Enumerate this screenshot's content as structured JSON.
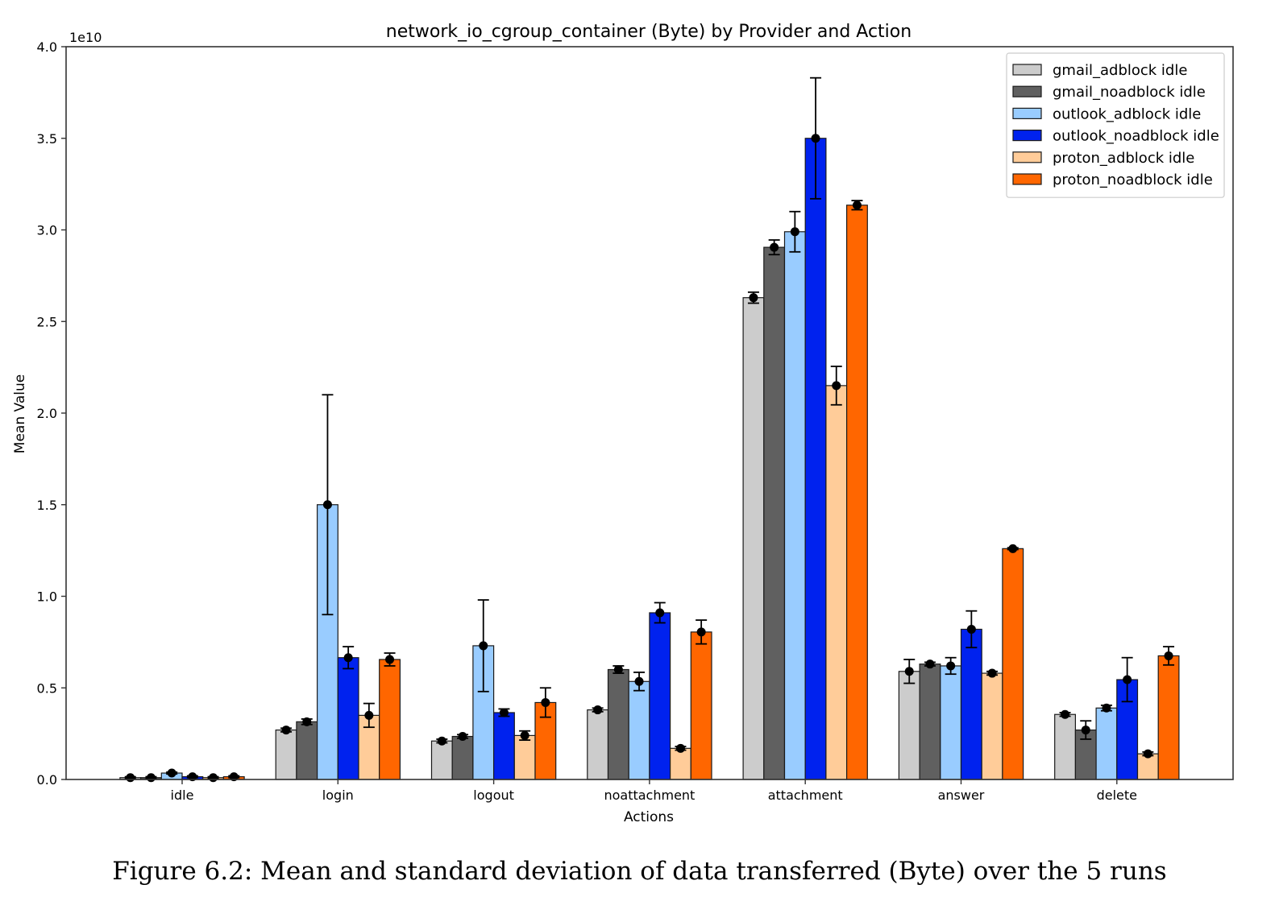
{
  "chart_data": {
    "type": "bar",
    "title": "network_io_cgroup_container (Byte) by Provider and Action",
    "xlabel": "Actions",
    "ylabel": "Mean Value",
    "y_scale_label": "1e10",
    "y_scale": 10000000000,
    "ylim": [
      0,
      4.0
    ],
    "yticks": [
      "0.0",
      "0.5",
      "1.0",
      "1.5",
      "2.0",
      "2.5",
      "3.0",
      "3.5",
      "4.0"
    ],
    "legend_position": "top-right",
    "grid": false,
    "error_bars": true,
    "categories": [
      "idle",
      "login",
      "logout",
      "noattachment",
      "attachment",
      "answer",
      "delete"
    ],
    "series": [
      {
        "name": "gmail_adblock idle",
        "color": "#cccccc",
        "values": [
          0.01,
          0.27,
          0.21,
          0.38,
          2.63,
          0.59,
          0.355
        ],
        "std": [
          0.005,
          0.01,
          0.01,
          0.01,
          0.03,
          0.065,
          0.01
        ]
      },
      {
        "name": "gmail_noadblock idle",
        "color": "#606060",
        "values": [
          0.01,
          0.315,
          0.235,
          0.6,
          2.905,
          0.63,
          0.27
        ],
        "std": [
          0.005,
          0.015,
          0.01,
          0.02,
          0.04,
          0.01,
          0.05
        ]
      },
      {
        "name": "outlook_adblock idle",
        "color": "#99ccff",
        "values": [
          0.035,
          1.5,
          0.73,
          0.535,
          2.99,
          0.62,
          0.39
        ],
        "std": [
          0.005,
          0.6,
          0.25,
          0.05,
          0.11,
          0.045,
          0.015
        ]
      },
      {
        "name": "outlook_noadblock idle",
        "color": "#0022ee",
        "values": [
          0.015,
          0.665,
          0.365,
          0.91,
          3.5,
          0.82,
          0.545
        ],
        "std": [
          0.005,
          0.06,
          0.02,
          0.055,
          0.33,
          0.1,
          0.12
        ]
      },
      {
        "name": "proton_adblock idle",
        "color": "#ffcc99",
        "values": [
          0.01,
          0.35,
          0.24,
          0.17,
          2.15,
          0.58,
          0.14
        ],
        "std": [
          0.005,
          0.065,
          0.025,
          0.01,
          0.105,
          0.01,
          0.01
        ]
      },
      {
        "name": "proton_noadblock idle",
        "color": "#ff6600",
        "values": [
          0.015,
          0.655,
          0.42,
          0.805,
          3.135,
          1.26,
          0.675
        ],
        "std": [
          0.005,
          0.035,
          0.08,
          0.065,
          0.025,
          0.005,
          0.05
        ]
      }
    ]
  },
  "caption": "Figure 6.2: Mean and standard deviation of data transferred (Byte) over the 5 runs"
}
